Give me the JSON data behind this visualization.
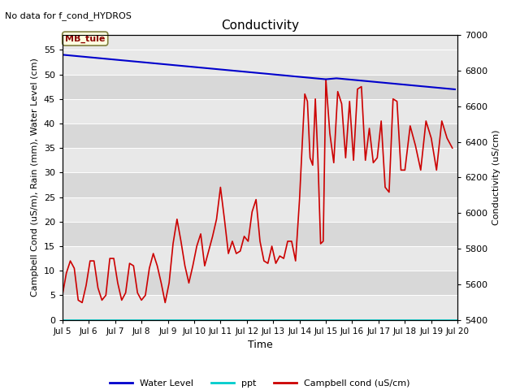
{
  "title": "Conductivity",
  "top_left_text": "No data for f_cond_HYDROS",
  "xlabel": "Time",
  "ylabel_left": "Campbell Cond (uS/m), Rain (mm), Water Level (cm)",
  "ylabel_right": "Conductivity (uS/cm)",
  "annotation_box": "MB_tule",
  "xlim": [
    5,
    20
  ],
  "ylim_left": [
    0,
    58
  ],
  "ylim_right": [
    5400,
    7000
  ],
  "xtick_labels": [
    "Jul 5",
    "Jul 6",
    "Jul 7",
    "Jul 8",
    "Jul 9",
    "Jul 10",
    "Jul 11",
    "Jul 12",
    "Jul 13",
    "Jul 14",
    "Jul 15",
    "Jul 16",
    "Jul 17",
    "Jul 18",
    "Jul 19",
    "Jul 20"
  ],
  "yticks_left": [
    0,
    5,
    10,
    15,
    20,
    25,
    30,
    35,
    40,
    45,
    50,
    55
  ],
  "yticks_right": [
    5400,
    5600,
    5800,
    6000,
    6200,
    6400,
    6600,
    6800,
    7000
  ],
  "fig_bg_color": "#ffffff",
  "plot_bg_color": "#e8e8e8",
  "band_color_light": "#e8e8e8",
  "band_color_dark": "#d8d8d8",
  "water_level_color": "#0000cc",
  "ppt_color": "#00cccc",
  "campbell_color": "#cc0000",
  "grid_color": "#ffffff",
  "legend_items": [
    "Water Level",
    "ppt",
    "Campbell cond (uS/cm)"
  ],
  "water_level_x": [
    5.0,
    5.1,
    5.2,
    5.3,
    5.4,
    5.5,
    5.6,
    5.7,
    5.8,
    5.9,
    6.0,
    6.1,
    6.2,
    6.3,
    6.4,
    6.5,
    6.6,
    6.7,
    6.8,
    6.9,
    7.0,
    7.1,
    7.2,
    7.3,
    7.4,
    7.5,
    7.6,
    7.7,
    7.8,
    7.9,
    8.0,
    8.1,
    8.2,
    8.3,
    8.4,
    8.5,
    8.6,
    8.7,
    8.8,
    8.9,
    9.0,
    9.1,
    9.2,
    9.3,
    9.4,
    9.5,
    9.6,
    9.7,
    9.8,
    9.9,
    10.0,
    10.1,
    10.2,
    10.3,
    10.4,
    10.5,
    10.6,
    10.7,
    10.8,
    10.9,
    11.0,
    11.1,
    11.2,
    11.3,
    11.4,
    11.5,
    11.6,
    11.7,
    11.8,
    11.9,
    12.0,
    12.1,
    12.2,
    12.3,
    12.4,
    12.5,
    12.6,
    12.7,
    12.8,
    12.9,
    13.0,
    13.1,
    13.2,
    13.3,
    13.4,
    13.5,
    13.6,
    13.7,
    13.8,
    13.9,
    14.0,
    14.1,
    14.2,
    14.3,
    14.4,
    14.5,
    14.6,
    14.7,
    14.8,
    14.9,
    15.0,
    15.1,
    15.2,
    15.3,
    15.4,
    15.5,
    15.6,
    15.7,
    15.8,
    15.9,
    16.0,
    16.1,
    16.2,
    16.3,
    16.4,
    16.5,
    16.6,
    16.7,
    16.8,
    16.9,
    17.0,
    17.1,
    17.2,
    17.3,
    17.4,
    17.5,
    17.6,
    17.7,
    17.8,
    17.9,
    18.0,
    18.1,
    18.2,
    18.3,
    18.4,
    18.5,
    18.6,
    18.7,
    18.8,
    18.9,
    19.0,
    19.1,
    19.2,
    19.3,
    19.4,
    19.5,
    19.6,
    19.7,
    19.8,
    19.9
  ],
  "water_level_y": [
    54.0,
    53.95,
    53.9,
    53.85,
    53.8,
    53.75,
    53.7,
    53.65,
    53.6,
    53.55,
    53.5,
    53.45,
    53.4,
    53.35,
    53.3,
    53.25,
    53.2,
    53.15,
    53.1,
    53.05,
    53.0,
    52.95,
    52.9,
    52.85,
    52.8,
    52.75,
    52.7,
    52.65,
    52.6,
    52.55,
    52.5,
    52.45,
    52.4,
    52.35,
    52.3,
    52.25,
    52.2,
    52.15,
    52.1,
    52.05,
    52.0,
    51.95,
    51.9,
    51.85,
    51.8,
    51.75,
    51.7,
    51.65,
    51.6,
    51.55,
    51.5,
    51.45,
    51.4,
    51.35,
    51.3,
    51.25,
    51.2,
    51.15,
    51.1,
    51.05,
    51.0,
    50.95,
    50.9,
    50.85,
    50.8,
    50.75,
    50.7,
    50.65,
    50.6,
    50.55,
    50.5,
    50.45,
    50.4,
    50.35,
    50.3,
    50.25,
    50.2,
    50.15,
    50.1,
    50.05,
    50.0,
    49.95,
    49.9,
    49.85,
    49.8,
    49.75,
    49.7,
    49.65,
    49.6,
    49.55,
    49.5,
    49.45,
    49.4,
    49.35,
    49.3,
    49.25,
    49.2,
    49.15,
    49.1,
    49.05,
    49.0,
    49.05,
    49.1,
    49.15,
    49.2,
    49.15,
    49.1,
    49.05,
    49.0,
    48.95,
    48.9,
    48.85,
    48.8,
    48.75,
    48.7,
    48.65,
    48.6,
    48.55,
    48.5,
    48.45,
    48.4,
    48.35,
    48.3,
    48.25,
    48.2,
    48.15,
    48.1,
    48.05,
    48.0,
    47.95,
    47.9,
    47.85,
    47.8,
    47.75,
    47.7,
    47.65,
    47.6,
    47.55,
    47.5,
    47.45,
    47.4,
    47.35,
    47.3,
    47.25,
    47.2,
    47.15,
    47.1,
    47.05,
    47.0,
    46.95
  ],
  "campbell_x": [
    5.0,
    5.15,
    5.3,
    5.45,
    5.6,
    5.75,
    5.9,
    6.05,
    6.2,
    6.35,
    6.5,
    6.65,
    6.8,
    6.95,
    7.1,
    7.25,
    7.4,
    7.55,
    7.7,
    7.85,
    8.0,
    8.15,
    8.3,
    8.45,
    8.6,
    8.75,
    8.9,
    9.05,
    9.2,
    9.35,
    9.5,
    9.65,
    9.8,
    9.95,
    10.1,
    10.25,
    10.4,
    10.55,
    10.7,
    10.85,
    11.0,
    11.15,
    11.3,
    11.45,
    11.6,
    11.75,
    11.9,
    12.05,
    12.2,
    12.35,
    12.5,
    12.65,
    12.8,
    12.95,
    13.1,
    13.25,
    13.4,
    13.55,
    13.7,
    13.85,
    14.0,
    14.1,
    14.2,
    14.3,
    14.4,
    14.5,
    14.6,
    14.7,
    14.8,
    14.9,
    15.0,
    15.15,
    15.3,
    15.45,
    15.6,
    15.75,
    15.9,
    16.05,
    16.2,
    16.35,
    16.5,
    16.65,
    16.8,
    16.95,
    17.1,
    17.25,
    17.4,
    17.55,
    17.7,
    17.85,
    18.0,
    18.2,
    18.4,
    18.6,
    18.8,
    19.0,
    19.2,
    19.4,
    19.6,
    19.8
  ],
  "campbell_y": [
    5.0,
    9.5,
    12.0,
    10.5,
    4.0,
    3.5,
    7.0,
    12.0,
    12.0,
    6.5,
    4.0,
    5.0,
    12.5,
    12.5,
    7.5,
    4.0,
    5.5,
    11.5,
    11.0,
    5.5,
    4.0,
    5.0,
    10.5,
    13.5,
    11.0,
    7.5,
    3.5,
    7.5,
    15.5,
    20.5,
    16.0,
    11.0,
    7.5,
    11.0,
    15.0,
    17.5,
    11.0,
    14.0,
    17.0,
    20.5,
    27.0,
    20.5,
    13.5,
    16.0,
    13.5,
    14.0,
    17.0,
    16.0,
    22.0,
    24.5,
    16.0,
    12.0,
    11.5,
    15.0,
    11.5,
    13.0,
    12.5,
    16.0,
    16.0,
    12.0,
    24.5,
    35.5,
    46.0,
    44.5,
    33.0,
    31.5,
    45.0,
    32.5,
    15.5,
    16.0,
    49.0,
    38.0,
    32.0,
    46.5,
    44.0,
    33.0,
    44.5,
    32.5,
    47.0,
    47.5,
    32.5,
    39.0,
    32.0,
    33.0,
    40.5,
    27.0,
    26.0,
    45.0,
    44.5,
    30.5,
    30.5,
    39.5,
    35.5,
    30.5,
    40.5,
    37.0,
    30.5,
    40.5,
    37.0,
    35.0
  ]
}
